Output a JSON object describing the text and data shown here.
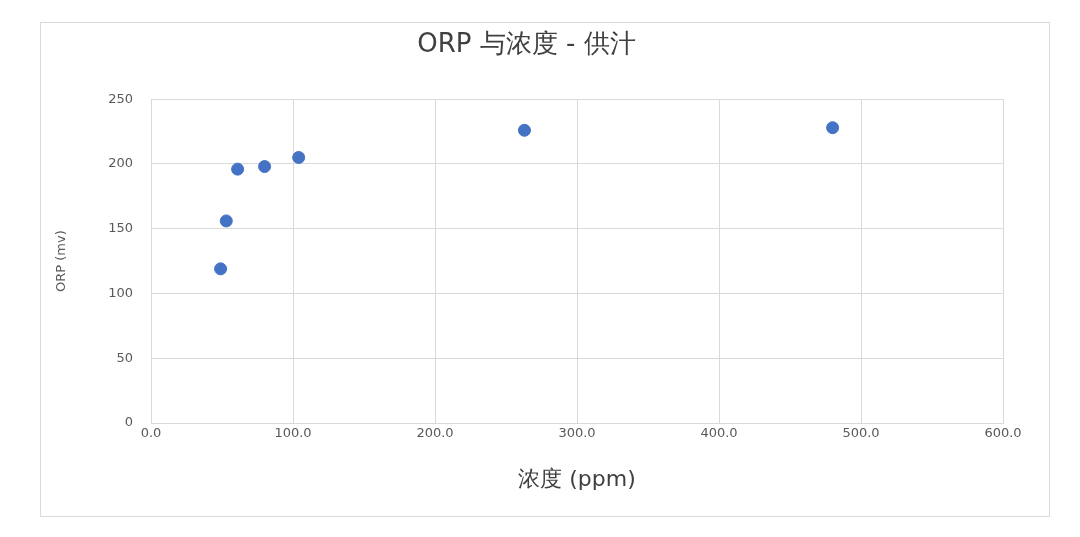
{
  "chart_data": {
    "type": "scatter",
    "title": "ORP 与浓度 - 供汁",
    "xlabel": "浓度 (ppm)",
    "ylabel": "ORP (mv)",
    "x": [
      49,
      53,
      61,
      80,
      104,
      263,
      480
    ],
    "values": [
      119,
      156,
      196,
      198,
      205,
      226,
      228
    ],
    "color": "#4472c4",
    "marker": "circle",
    "xlim": [
      0,
      600
    ],
    "xticks": [
      {
        "value": 0,
        "label": "0.0"
      },
      {
        "value": 100,
        "label": "100.0"
      },
      {
        "value": 200,
        "label": "200.0"
      },
      {
        "value": 300,
        "label": "300.0"
      },
      {
        "value": 400,
        "label": "400.0"
      },
      {
        "value": 500,
        "label": "500.0"
      },
      {
        "value": 600,
        "label": "600.0"
      }
    ],
    "ylim": [
      0,
      250
    ],
    "yticks": [
      0,
      50,
      100,
      150,
      200,
      250
    ],
    "grid": true,
    "legend": false
  }
}
